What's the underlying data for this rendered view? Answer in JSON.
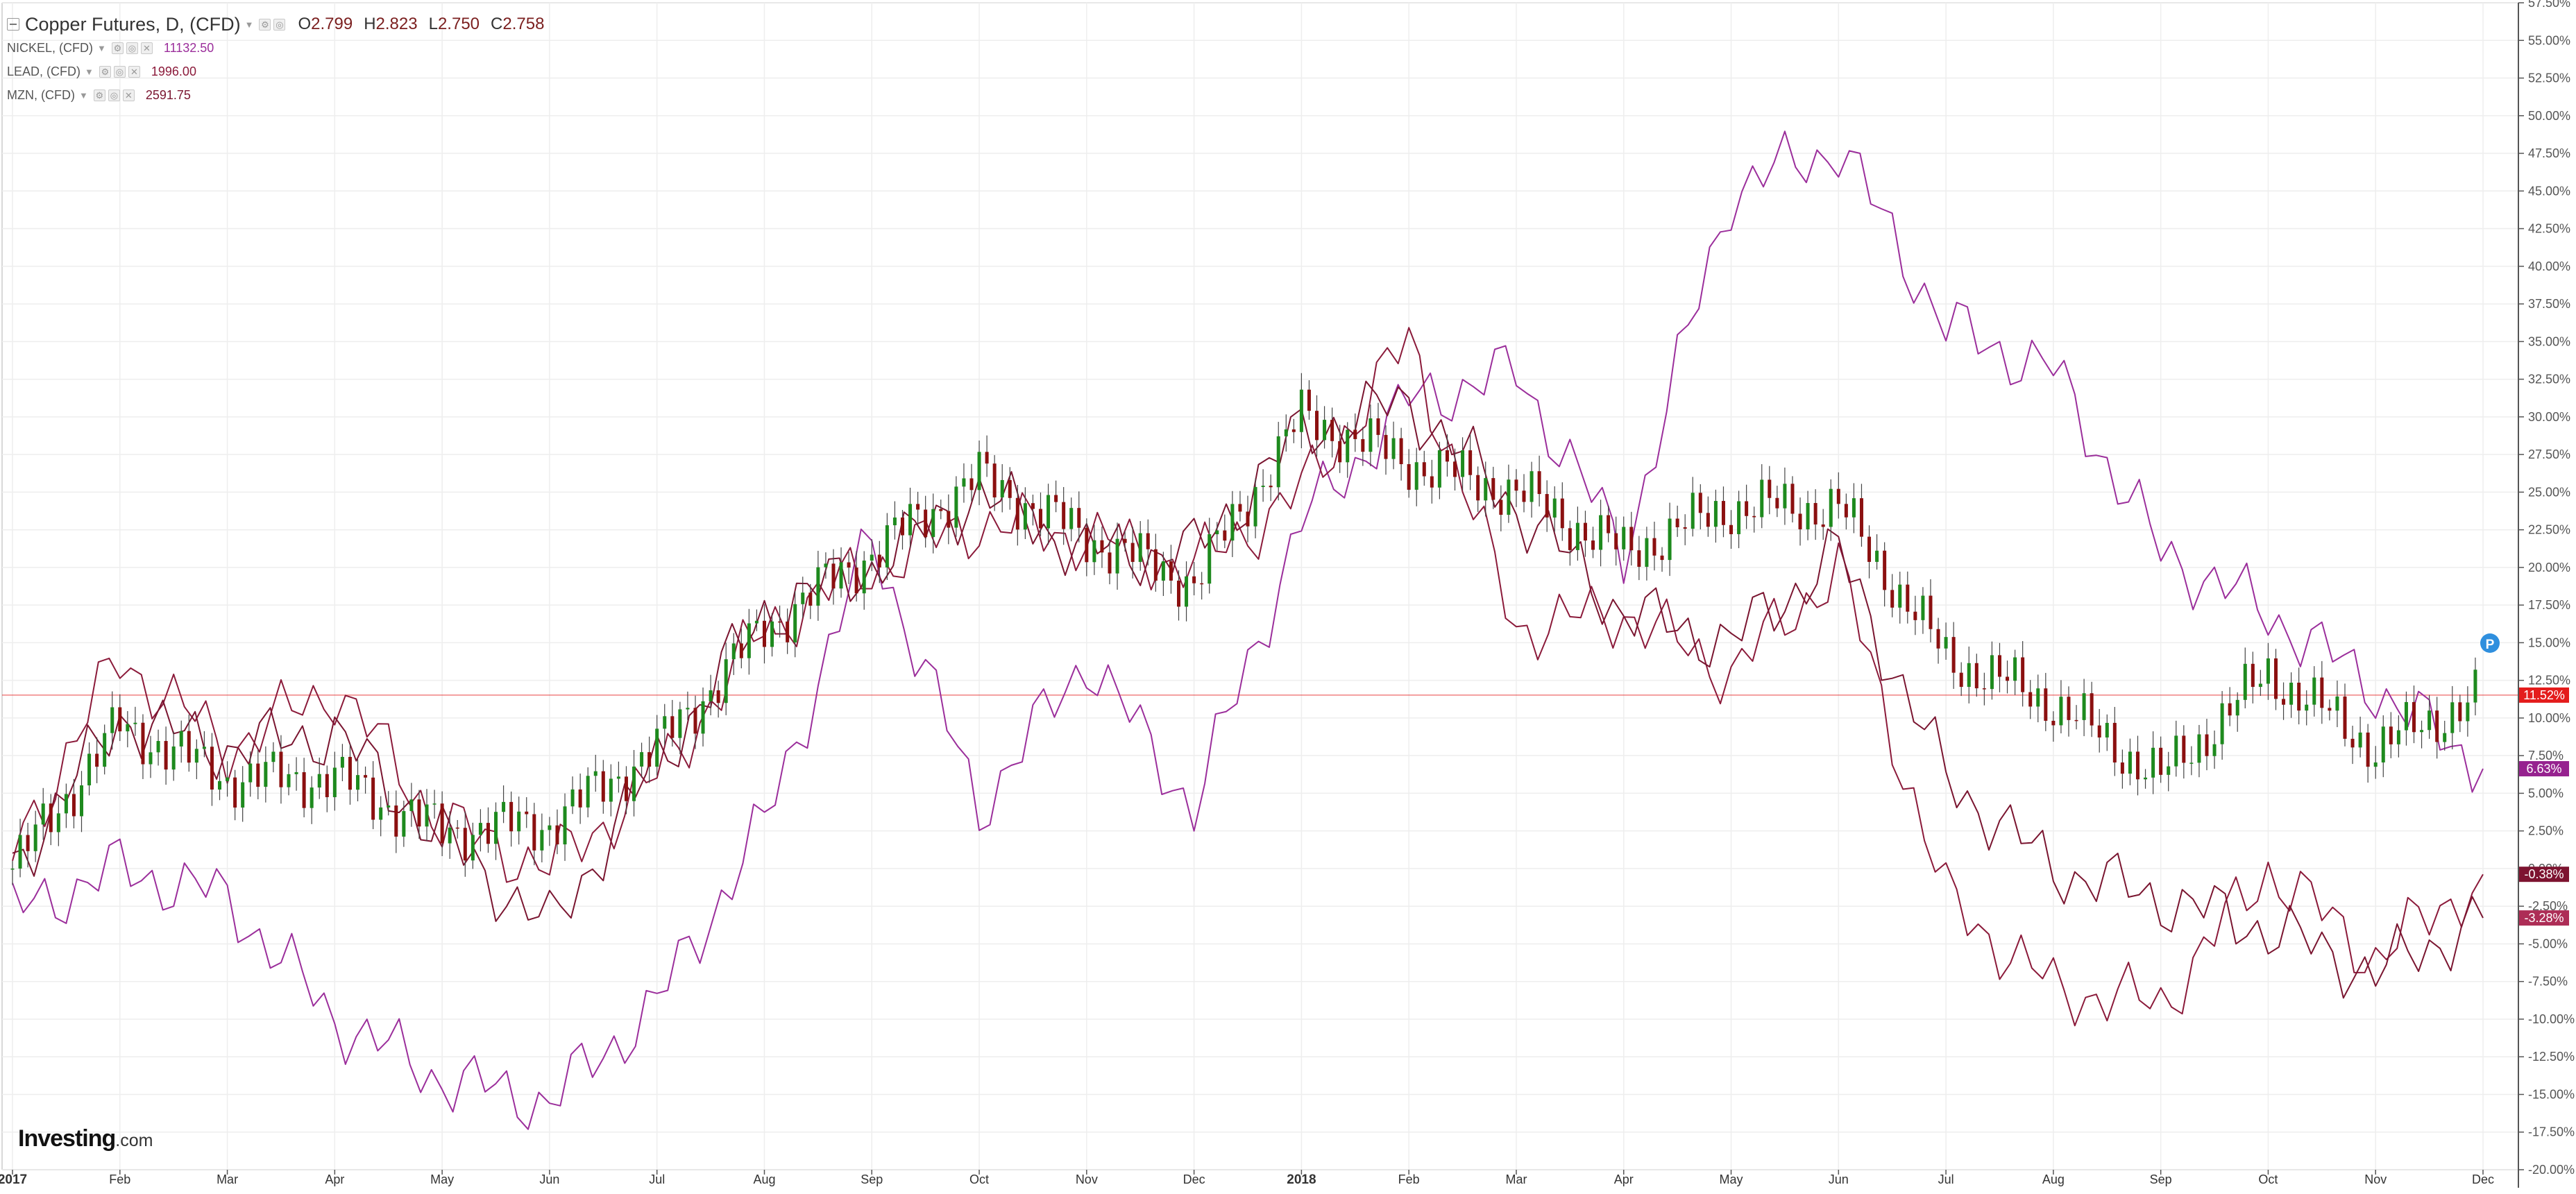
{
  "legend": {
    "main_symbol": "Copper Futures, D, (CFD)",
    "ohlc": {
      "o_label": "O",
      "o_value": "2.799",
      "h_label": "H",
      "h_value": "2.823",
      "l_label": "L",
      "l_value": "2.750",
      "c_label": "C",
      "c_value": "2.758"
    },
    "symbols": [
      {
        "name": "NICKEL, (CFD)",
        "value": "11132.50",
        "color": "#9b2e9b"
      },
      {
        "name": "LEAD, (CFD)",
        "value": "1996.00",
        "color": "#8b1a3a"
      },
      {
        "name": "MZN, (CFD)",
        "value": "2591.75",
        "color": "#7a1530"
      }
    ]
  },
  "branding": {
    "name": "Investing",
    "domain": ".com"
  },
  "badges": [
    {
      "text": "11.52%",
      "value": 11.52,
      "color": "#e41c1c"
    },
    {
      "text": "6.63%",
      "value": 6.63,
      "color": "#96228f"
    },
    {
      "text": "-0.38%",
      "value": -0.38,
      "color": "#7d1330"
    },
    {
      "text": "-3.28%",
      "value": -3.28,
      "color": "#ad2d56"
    }
  ],
  "chart_data": {
    "type": "line",
    "y_axis": "percent change",
    "ylim": [
      -20,
      57.5
    ],
    "y_ticks": [
      "57.50%",
      "55.00%",
      "52.50%",
      "50.00%",
      "47.50%",
      "45.00%",
      "42.50%",
      "40.00%",
      "37.50%",
      "35.00%",
      "32.50%",
      "30.00%",
      "27.50%",
      "25.00%",
      "22.50%",
      "20.00%",
      "17.50%",
      "15.00%",
      "12.50%",
      "10.00%",
      "7.50%",
      "5.00%",
      "2.50%",
      "0.00%",
      "-2.50%",
      "-5.00%",
      "-7.50%",
      "-10.00%",
      "-12.50%",
      "-15.00%",
      "-17.50%",
      "-20.00%"
    ],
    "x_ticks": [
      "2017",
      "Feb",
      "Mar",
      "Apr",
      "May",
      "Jun",
      "Jul",
      "Aug",
      "Sep",
      "Oct",
      "Nov",
      "Dec",
      "2018",
      "Feb",
      "Mar",
      "Apr",
      "May",
      "Jun",
      "Jul",
      "Aug",
      "Sep",
      "Oct",
      "Nov",
      "Dec"
    ],
    "grid": true,
    "reference_line": 11.52,
    "x": [
      "2017-01",
      "2017-02",
      "2017-03",
      "2017-04",
      "2017-05",
      "2017-06",
      "2017-07",
      "2017-08",
      "2017-09",
      "2017-10",
      "2017-11",
      "2017-12",
      "2018-01",
      "2018-02",
      "2018-03",
      "2018-04",
      "2018-05",
      "2018-06",
      "2018-07",
      "2018-08",
      "2018-09",
      "2018-10",
      "2018-11",
      "2018-12"
    ],
    "series": [
      {
        "name": "Copper Futures, D, (CFD)",
        "style": "candlestick",
        "color_up": "#1e8a1e",
        "color_down": "#8b1010",
        "values": [
          0,
          9.5,
          6,
          6,
          2.5,
          3,
          8,
          16,
          21,
          26,
          22,
          19,
          30,
          27,
          25,
          21,
          24,
          24,
          14,
          11,
          6,
          13,
          8,
          11.52
        ]
      },
      {
        "name": "NICKEL, (CFD)",
        "color": "#9b2e9b",
        "values": [
          -3,
          0,
          -2,
          -10,
          -14,
          -15.5,
          -9,
          3,
          22,
          4,
          14,
          4,
          23,
          31,
          33,
          21,
          45,
          48,
          36,
          33,
          21,
          17,
          12,
          6.63
        ]
      },
      {
        "name": "LEAD, (CFD)",
        "color": "#8b1a3a",
        "values": [
          1,
          14,
          8,
          12,
          3,
          0,
          6,
          16,
          20,
          23,
          22,
          20,
          25,
          35,
          16,
          17,
          13,
          20,
          -2,
          -8,
          -9,
          0,
          -6,
          -0.38
        ]
      },
      {
        "name": "MZN, (CFD)",
        "color": "#7a1530",
        "values": [
          0,
          10,
          8,
          9,
          2,
          -4,
          7,
          17,
          20,
          25,
          21,
          21,
          29,
          31,
          24,
          17,
          15,
          21,
          6,
          0,
          -2,
          -4,
          -7,
          -3.28
        ]
      }
    ]
  }
}
